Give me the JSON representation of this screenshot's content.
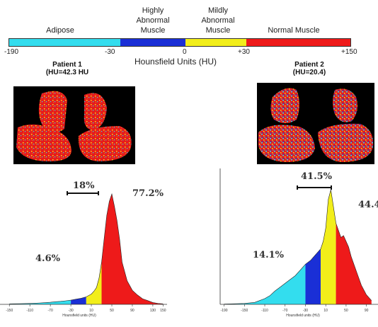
{
  "colors": {
    "adipose": "#33ddee",
    "highly_abnormal": "#1a2fd6",
    "mildly_abnormal": "#f2ee1a",
    "normal": "#ee1a1a"
  },
  "scale": {
    "categories": [
      "Adipose",
      "Highly Abnormal Muscle",
      "Mildly Abnormal Muscle",
      "Normal Muscle"
    ],
    "category_lines": [
      [
        "Adipose"
      ],
      [
        "Highly",
        "Abnormal",
        "Muscle"
      ],
      [
        "Mildly",
        "Abnormal",
        "Muscle"
      ],
      [
        "Normal Muscle"
      ]
    ],
    "boundaries": [
      -190,
      -30,
      0,
      30,
      150
    ],
    "tick_labels": [
      "-190",
      "-30",
      "0",
      "+30",
      "+150"
    ],
    "title": "Hounsfield Units (HU)"
  },
  "patients": [
    {
      "title": "Patient 1",
      "subtitle": "(HU=42.3 HU",
      "percentages": {
        "adipose": "4.6%",
        "abnormal": "18%",
        "normal": "77.2%"
      },
      "xlabel": "Hounsfield units (HU)",
      "xticks": [
        "-150",
        "-110",
        "-70",
        "-30",
        "10",
        "50",
        "90",
        "130",
        "150"
      ]
    },
    {
      "title": "Patient 2",
      "subtitle": "(HU=20.4)",
      "percentages": {
        "adipose": "14.1%",
        "abnormal": "41.5%",
        "normal": "44.4"
      },
      "xlabel": "Hounsfield units (HU)",
      "xticks": [
        "-190",
        "-150",
        "-110",
        "-70",
        "-30",
        "10",
        "50",
        "90"
      ]
    }
  ],
  "chart_data": [
    {
      "type": "area",
      "xlabel": "Hounsfield units (HU)",
      "xlim": [
        -160,
        155
      ],
      "x": [
        -150,
        -130,
        -110,
        -100,
        -90,
        -80,
        -70,
        -60,
        -50,
        -40,
        -30,
        -20,
        -10,
        0,
        10,
        15,
        20,
        25,
        30,
        35,
        40,
        45,
        50,
        55,
        60,
        65,
        70,
        80,
        90,
        100,
        110,
        120,
        130,
        140,
        150
      ],
      "y": [
        0.5,
        0.7,
        1,
        1.2,
        1.5,
        1.8,
        2.2,
        2.8,
        3.2,
        3.8,
        4.5,
        5.5,
        6.5,
        8,
        11,
        14,
        18,
        28,
        45,
        70,
        95,
        110,
        118,
        105,
        90,
        70,
        45,
        25,
        15,
        10,
        6,
        4,
        2,
        1,
        0.5
      ]
    },
    {
      "type": "area",
      "xlabel": "Hounsfield units (HU)",
      "xlim": [
        -195,
        110
      ],
      "x": [
        -190,
        -170,
        -150,
        -130,
        -110,
        -100,
        -90,
        -80,
        -70,
        -60,
        -50,
        -40,
        -30,
        -20,
        -10,
        0,
        5,
        10,
        15,
        20,
        30,
        40,
        45,
        50,
        55,
        60,
        70,
        80,
        90,
        100
      ],
      "y": [
        0.3,
        0.6,
        1,
        2,
        6,
        9,
        14,
        18,
        22,
        26,
        30,
        36,
        42,
        46,
        52,
        58,
        66,
        80,
        110,
        120,
        85,
        70,
        72,
        66,
        60,
        50,
        35,
        20,
        10,
        4
      ]
    }
  ]
}
